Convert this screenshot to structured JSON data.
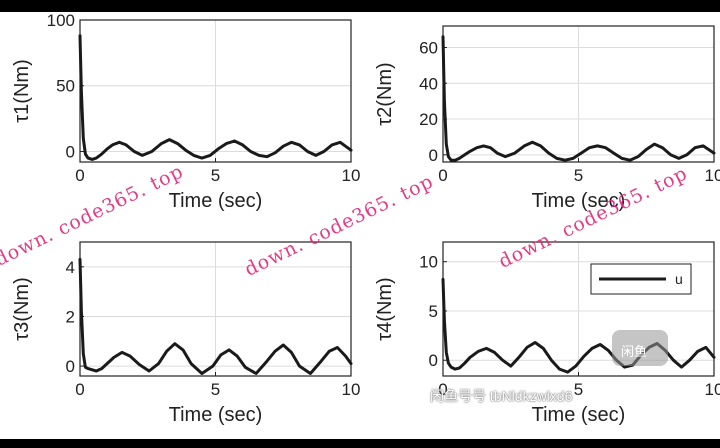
{
  "chart_data": [
    {
      "type": "line",
      "ylabel": "τ1(Nm)",
      "xlabel": "Time (sec)",
      "xlim": [
        0,
        10
      ],
      "ylim": [
        -8,
        100
      ],
      "xticks": [
        "0",
        "5",
        "10"
      ],
      "yticks": [
        "0",
        "50",
        "100"
      ],
      "ytick_values": [
        0,
        50,
        100
      ],
      "grid": true,
      "series": [
        {
          "x": [
            0,
            0.05,
            0.12,
            0.2,
            0.3,
            0.45,
            0.6,
            0.8,
            1.0,
            1.2,
            1.45,
            1.7,
            2.0,
            2.3,
            2.65,
            3.0,
            3.3,
            3.6,
            3.9,
            4.2,
            4.5,
            4.8,
            5.1,
            5.4,
            5.7,
            6.0,
            6.3,
            6.6,
            6.9,
            7.2,
            7.5,
            7.8,
            8.1,
            8.4,
            8.7,
            9.0,
            9.3,
            9.6,
            10.0
          ],
          "y": [
            88,
            45,
            10,
            -2,
            -5,
            -6,
            -5,
            -2,
            2,
            5,
            7,
            5,
            0,
            -3,
            0,
            6,
            9,
            6,
            1,
            -3,
            -5,
            -3,
            2,
            6,
            8,
            5,
            0,
            -3,
            -4,
            -1,
            4,
            7,
            5,
            0,
            -3,
            0,
            5,
            7,
            1
          ]
        }
      ]
    },
    {
      "type": "line",
      "ylabel": "τ2(Nm)",
      "xlabel": "Time (sec)",
      "xlim": [
        0,
        10
      ],
      "ylim": [
        -4,
        72
      ],
      "xticks": [
        "0",
        "5",
        "10"
      ],
      "yticks": [
        "0",
        "20",
        "40",
        "60"
      ],
      "ytick_values": [
        0,
        20,
        40,
        60
      ],
      "grid": true,
      "series": [
        {
          "x": [
            0,
            0.05,
            0.12,
            0.2,
            0.3,
            0.45,
            0.6,
            0.8,
            1.0,
            1.25,
            1.5,
            1.75,
            2.0,
            2.3,
            2.65,
            3.0,
            3.3,
            3.6,
            3.9,
            4.2,
            4.5,
            4.8,
            5.1,
            5.4,
            5.7,
            6.0,
            6.3,
            6.6,
            6.9,
            7.2,
            7.5,
            7.8,
            8.1,
            8.4,
            8.7,
            9.0,
            9.3,
            9.6,
            10.0
          ],
          "y": [
            66,
            30,
            6,
            -1,
            -3,
            -3,
            -2,
            0,
            2,
            4,
            5,
            4,
            1,
            -1,
            1,
            5,
            7,
            5,
            1,
            -2,
            -3,
            -2,
            1,
            4,
            5,
            4,
            1,
            -2,
            -3,
            -1,
            3,
            6,
            4,
            0,
            -2,
            0,
            4,
            5,
            1
          ]
        }
      ]
    },
    {
      "type": "line",
      "ylabel": "τ3(Nm)",
      "xlabel": "Time (sec)",
      "xlim": [
        0,
        10
      ],
      "ylim": [
        -0.4,
        5
      ],
      "xticks": [
        "0",
        "5",
        "10"
      ],
      "yticks": [
        "0",
        "2",
        "4"
      ],
      "ytick_values": [
        0,
        2,
        4
      ],
      "grid": true,
      "series": [
        {
          "x": [
            0,
            0.05,
            0.12,
            0.2,
            0.3,
            0.45,
            0.6,
            0.8,
            1.0,
            1.25,
            1.55,
            1.85,
            2.2,
            2.55,
            2.9,
            3.2,
            3.5,
            3.8,
            4.1,
            4.5,
            4.9,
            5.2,
            5.5,
            5.8,
            6.1,
            6.5,
            6.9,
            7.2,
            7.5,
            7.8,
            8.1,
            8.5,
            8.9,
            9.2,
            9.5,
            9.8,
            10.0
          ],
          "y": [
            4.3,
            2.2,
            0.5,
            -0.05,
            -0.1,
            -0.15,
            -0.2,
            -0.1,
            0.1,
            0.35,
            0.55,
            0.4,
            0.05,
            -0.2,
            0.1,
            0.6,
            0.9,
            0.65,
            0.1,
            -0.3,
            0.0,
            0.45,
            0.65,
            0.4,
            -0.05,
            -0.3,
            0.2,
            0.6,
            0.85,
            0.55,
            0.0,
            -0.3,
            0.2,
            0.6,
            0.75,
            0.4,
            0.1
          ]
        }
      ]
    },
    {
      "type": "line",
      "ylabel": "τ4(Nm)",
      "xlabel": "Time (sec)",
      "xlim": [
        0,
        10
      ],
      "ylim": [
        -1.6,
        12
      ],
      "xticks": [
        "0",
        "5",
        "10"
      ],
      "yticks": [
        "0",
        "5",
        "10"
      ],
      "ytick_values": [
        0,
        5,
        10
      ],
      "grid": true,
      "legend": {
        "labels": [
          "u"
        ],
        "position": "top-right"
      },
      "series": [
        {
          "name": "u",
          "x": [
            0,
            0.05,
            0.12,
            0.2,
            0.3,
            0.45,
            0.6,
            0.8,
            1.0,
            1.3,
            1.6,
            1.9,
            2.2,
            2.5,
            2.8,
            3.1,
            3.4,
            3.7,
            4.0,
            4.3,
            4.6,
            4.9,
            5.2,
            5.5,
            5.8,
            6.1,
            6.4,
            6.7,
            7.0,
            7.3,
            7.6,
            7.9,
            8.2,
            8.5,
            8.8,
            9.1,
            9.4,
            9.7,
            10.0
          ],
          "y": [
            8.2,
            4.0,
            0.8,
            -0.3,
            -0.7,
            -0.9,
            -0.8,
            -0.3,
            0.3,
            0.9,
            1.2,
            0.8,
            0.0,
            -0.6,
            0.3,
            1.3,
            1.8,
            1.2,
            0.0,
            -0.9,
            -1.2,
            -0.6,
            0.4,
            1.2,
            1.6,
            1.0,
            0.0,
            -0.7,
            -0.5,
            0.5,
            1.3,
            1.7,
            1.0,
            0.0,
            -0.7,
            0.0,
            0.9,
            1.3,
            0.3
          ]
        }
      ]
    }
  ],
  "watermarks": {
    "site_1": "down. code365. top",
    "site_2": "down. code365. top",
    "site_3": "down. code365. top",
    "overlay": "闲鱼号号 tbNldkzwlxd6",
    "badge": "闲鱼"
  },
  "colors": {
    "line": "#1a1a1a",
    "grid": "#dcdcdc",
    "axis": "#222222",
    "watermark": "#e0287a"
  }
}
